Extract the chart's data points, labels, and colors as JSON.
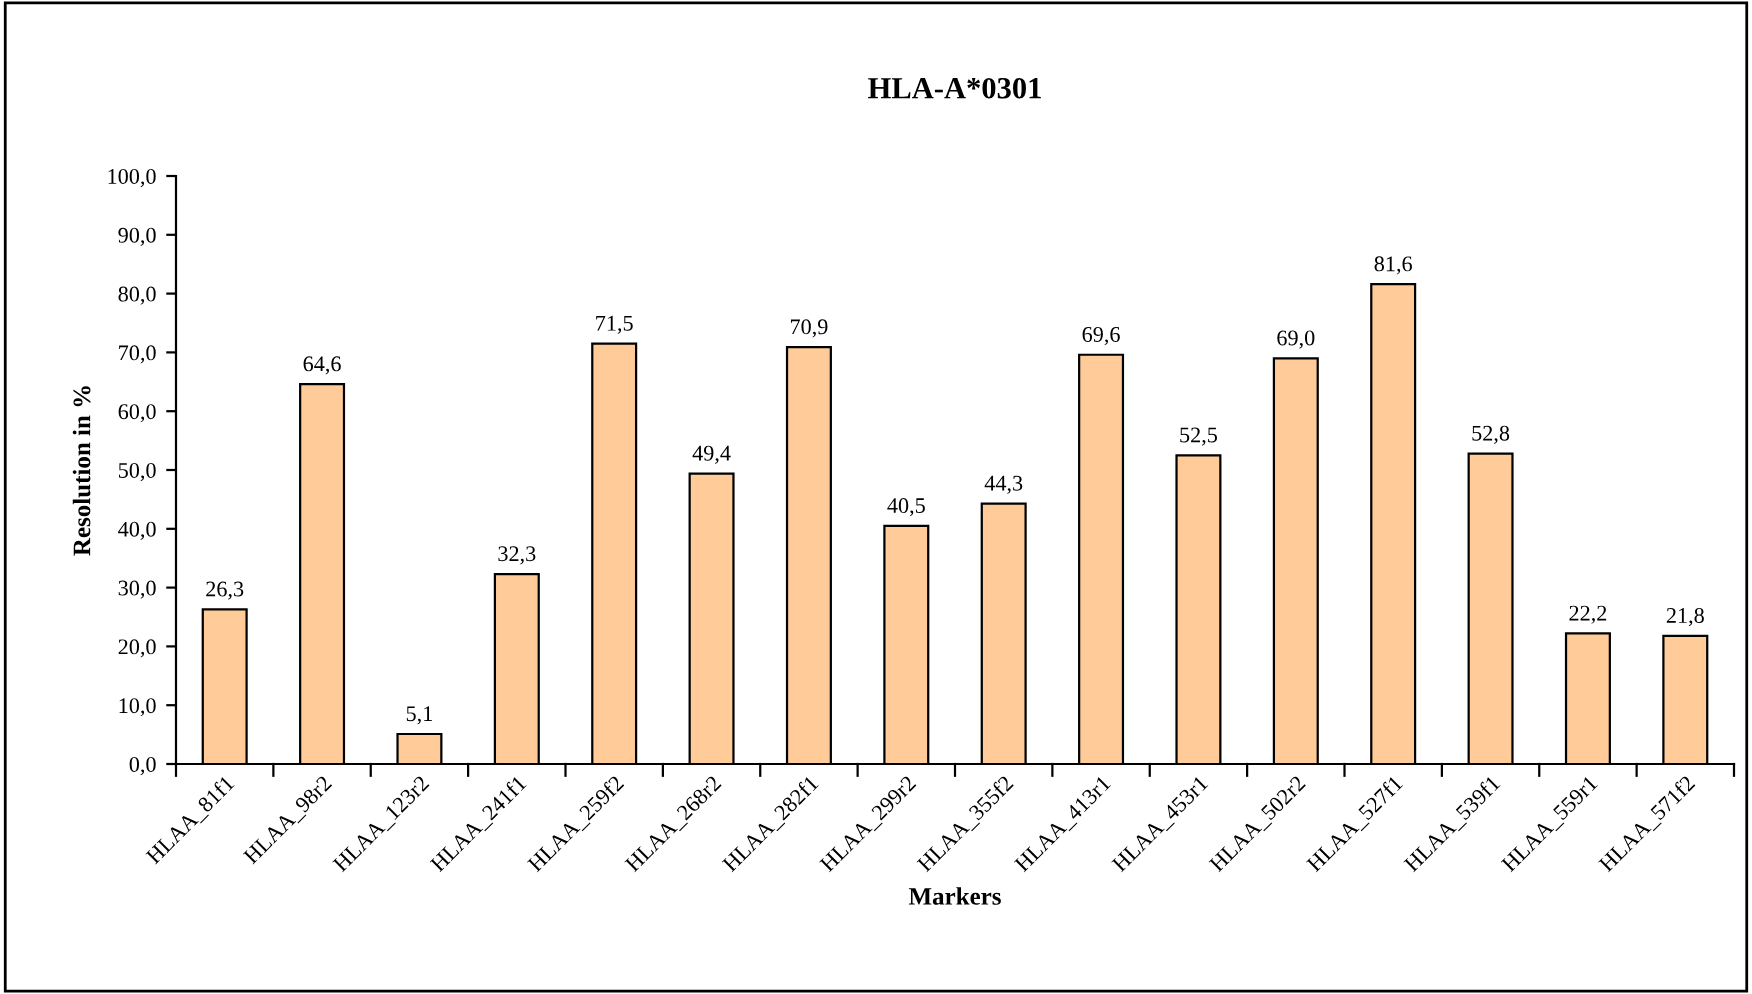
{
  "chart_data": {
    "type": "bar",
    "title": "HLA-A*0301",
    "xlabel": "Markers",
    "ylabel": "Resolution in %",
    "categories": [
      "HLAA_81f1",
      "HLAA_98r2",
      "HLAA_123r2",
      "HLAA_241f1",
      "HLAA_259f2",
      "HLAA_268r2",
      "HLAA_282f1",
      "HLAA_299r2",
      "HLAA_355f2",
      "HLAA_413r1",
      "HLAA_453r1",
      "HLAA_502r2",
      "HLAA_527f1",
      "HLAA_539f1",
      "HLAA_559r1",
      "HLAA_571f2"
    ],
    "values": [
      26.3,
      64.6,
      5.1,
      32.3,
      71.5,
      49.4,
      70.9,
      40.5,
      44.3,
      69.6,
      52.5,
      69.0,
      81.6,
      52.8,
      22.2,
      21.8
    ],
    "value_labels": [
      "26,3",
      "64,6",
      "5,1",
      "32,3",
      "71,5",
      "49,4",
      "70,9",
      "40,5",
      "44,3",
      "69,6",
      "52,5",
      "69,0",
      "81,6",
      "52,8",
      "22,2",
      "21,8"
    ],
    "color": "#ffcc99",
    "ylim": [
      0,
      100
    ],
    "yticks": [
      {
        "value": 0,
        "label": "0,0"
      },
      {
        "value": 10,
        "label": "10,0"
      },
      {
        "value": 20,
        "label": "20,0"
      },
      {
        "value": 30,
        "label": "30,0"
      },
      {
        "value": 40,
        "label": "40,0"
      },
      {
        "value": 50,
        "label": "50,0"
      },
      {
        "value": 60,
        "label": "60,0"
      },
      {
        "value": 70,
        "label": "70,0"
      },
      {
        "value": 80,
        "label": "80,0"
      },
      {
        "value": 90,
        "label": "90,0"
      },
      {
        "value": 100,
        "label": "100,0"
      }
    ],
    "grid": false,
    "legend": false
  }
}
